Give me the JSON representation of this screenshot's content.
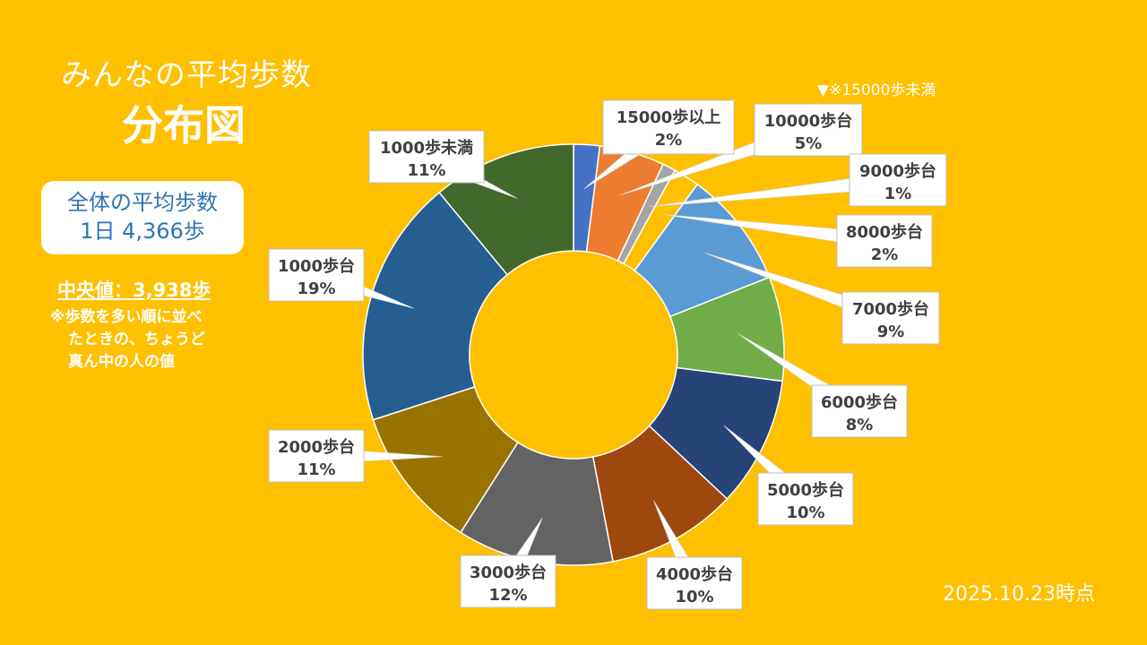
{
  "title": {
    "line1": "みんなの平均歩数",
    "line2": "分布図"
  },
  "average_box": {
    "line1": "全体の平均歩数",
    "line2": "1日 4,366歩"
  },
  "median": {
    "text": "中央値：3,938歩",
    "note_line1": "※歩数を多い順に並べ",
    "note_line2": "たときの、ちょうど",
    "note_line3": "真ん中の人の値"
  },
  "footnote": "▼※15000歩未満",
  "date": "2025.10.23時点",
  "chart_data": {
    "type": "pie",
    "donut": true,
    "categories": [
      "15000歩以上",
      "10000歩台",
      "9000歩台",
      "8000歩台",
      "7000歩台",
      "6000歩台",
      "5000歩台",
      "4000歩台",
      "3000歩台",
      "2000歩台",
      "1000歩台",
      "1000歩未満"
    ],
    "values": [
      2,
      5,
      1,
      2,
      9,
      8,
      10,
      10,
      12,
      11,
      19,
      11
    ],
    "colors": [
      "#4472C4",
      "#ED7D31",
      "#A5A5A5",
      "#FFC000",
      "#5B9BD5",
      "#70AD47",
      "#264478",
      "#9E480E",
      "#636363",
      "#997300",
      "#255E91",
      "#43682B"
    ],
    "labels": [
      {
        "name": "15000歩以上",
        "pct": "2%"
      },
      {
        "name": "10000歩台",
        "pct": "5%"
      },
      {
        "name": "9000歩台",
        "pct": "1%"
      },
      {
        "name": "8000歩台",
        "pct": "2%"
      },
      {
        "name": "7000歩台",
        "pct": "9%"
      },
      {
        "name": "6000歩台",
        "pct": "8%"
      },
      {
        "name": "5000歩台",
        "pct": "10%"
      },
      {
        "name": "4000歩台",
        "pct": "10%"
      },
      {
        "name": "3000歩台",
        "pct": "12%"
      },
      {
        "name": "2000歩台",
        "pct": "11%"
      },
      {
        "name": "1000歩台",
        "pct": "19%"
      },
      {
        "name": "1000歩未満",
        "pct": "11%"
      }
    ],
    "legend": "none"
  }
}
